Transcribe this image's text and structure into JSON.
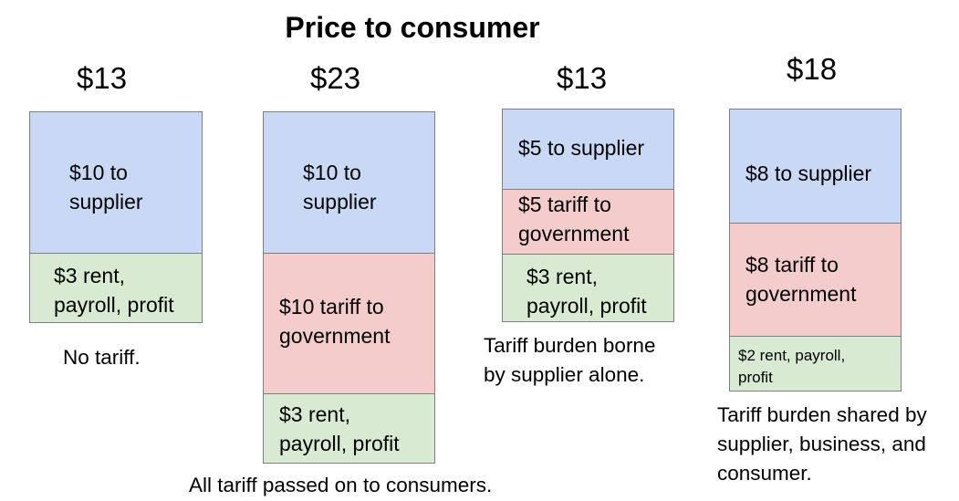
{
  "title": "Price to consumer",
  "scenarios": [
    {
      "price": "$13",
      "supplier": "$10 to\nsupplier",
      "business": "$3 rent,\npayroll, profit",
      "caption": "No tariff.",
      "colors": {
        "supplier": "#c8d8f5",
        "business": "#d9ead3"
      }
    },
    {
      "price": "$23",
      "supplier": "$10 to\nsupplier",
      "tariff": "$10 tariff to\ngovernment",
      "business": "$3 rent,\npayroll, profit",
      "caption": "All tariff passed on to consumers."
    },
    {
      "price": "$13",
      "supplier": "$5 to supplier",
      "tariff": "$5 tariff to\ngovernment",
      "business": "$3 rent,\npayroll, profit",
      "caption": "Tariff burden borne\nby supplier alone."
    },
    {
      "price": "$18",
      "supplier": "$8 to supplier",
      "tariff": "$8 tariff to\ngovernment",
      "business": "$2 rent, payroll,\nprofit",
      "caption": "Tariff burden shared by\nsupplier, business, and\nconsumer."
    }
  ],
  "colors": {
    "supplier": "#c8d8f5",
    "tariff": "#f4cccc",
    "business": "#d9ead3",
    "border": "#7f7f7f"
  }
}
